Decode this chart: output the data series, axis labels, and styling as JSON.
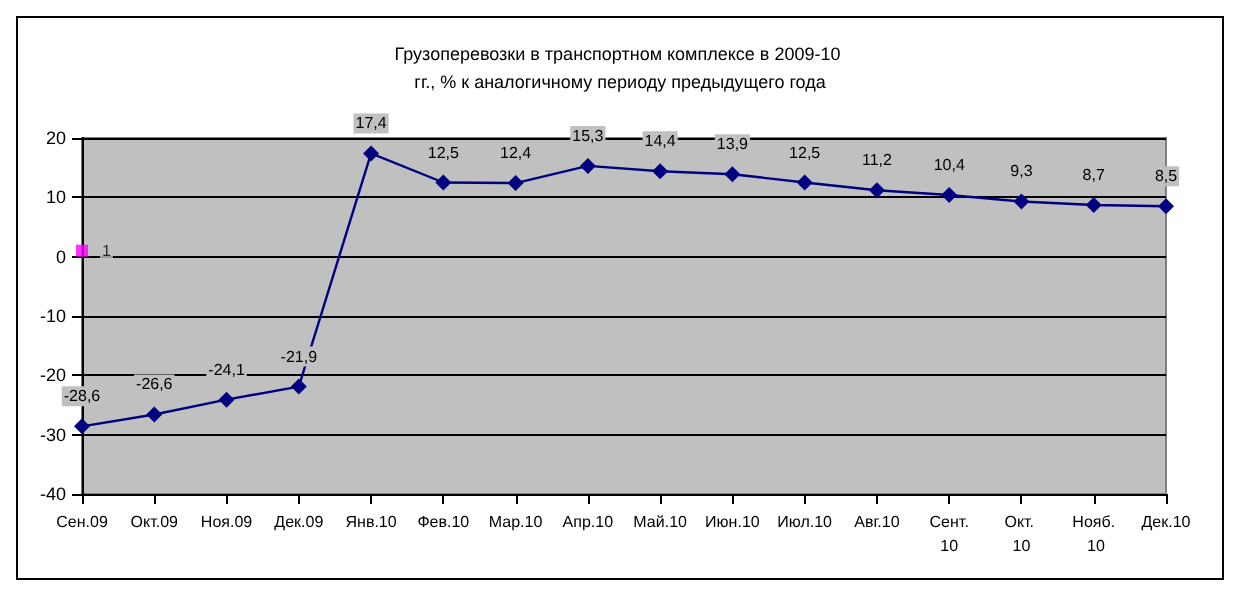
{
  "chart_data": {
    "type": "line",
    "title": "Грузоперевозки в транспортном комплексе в 2009-10 гг., % к аналогичному периоду предыдущего года",
    "categories": [
      "Сен.09",
      "Окт.09",
      "Ноя.09",
      "Дек.09",
      "Янв.10",
      "Фев.10",
      "Мар.10",
      "Апр.10",
      "Май.10",
      "Июн.10",
      "Июл.10",
      "Авг.10",
      "Сент.10",
      "Окт. 10",
      "Нояб. 10",
      "Дек.10"
    ],
    "series": [
      {
        "color": "#000080",
        "marker": "diamond",
        "values": [
          -28.6,
          -26.6,
          -24.1,
          -21.9,
          17.4,
          12.5,
          12.4,
          15.3,
          14.4,
          13.9,
          12.5,
          11.2,
          10.4,
          9.3,
          8.7,
          8.5
        ],
        "value_labels": [
          "-28,6",
          "-26,6",
          "-24,1",
          "-21,9",
          "17,4",
          "12,5",
          "12,4",
          "15,3",
          "14,4",
          "13,9",
          "12,5",
          "11,2",
          "10,4",
          "9,3",
          "8,7",
          "8,5"
        ]
      },
      {
        "type": "scatter",
        "color": "#ff00ff",
        "marker": "square",
        "values": [
          1,
          null,
          null,
          null,
          null,
          null,
          null,
          null,
          null,
          null,
          null,
          null,
          null,
          null,
          null,
          null
        ],
        "value_labels": [
          "1",
          null,
          null,
          null,
          null,
          null,
          null,
          null,
          null,
          null,
          null,
          null,
          null,
          null,
          null,
          null
        ]
      }
    ],
    "ylim": [
      -40,
      20
    ],
    "yticks": [
      -40,
      -30,
      -20,
      -10,
      0,
      10,
      20
    ],
    "grid": "y"
  }
}
